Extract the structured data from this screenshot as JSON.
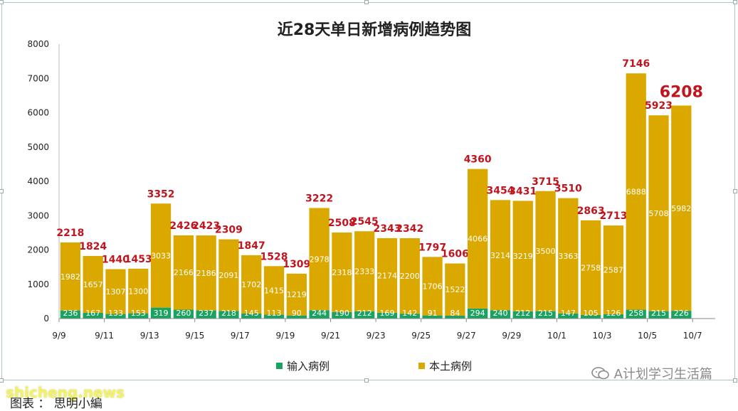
{
  "chart_data": {
    "type": "bar",
    "stacked": true,
    "title": "近28天单日新增病例趋势图",
    "ylim": [
      0,
      8000
    ],
    "yticks": [
      0,
      1000,
      2000,
      3000,
      4000,
      5000,
      6000,
      7000,
      8000
    ],
    "x_tick_labels": [
      "9/9",
      "9/11",
      "9/13",
      "9/15",
      "9/17",
      "9/19",
      "9/21",
      "9/23",
      "9/25",
      "9/27",
      "9/29",
      "10/1",
      "10/3",
      "10/5",
      "10/7"
    ],
    "categories": [
      "9/9",
      "9/10",
      "9/11",
      "9/12",
      "9/13",
      "9/14",
      "9/15",
      "9/16",
      "9/17",
      "9/18",
      "9/19",
      "9/20",
      "9/21",
      "9/22",
      "9/23",
      "9/24",
      "9/25",
      "9/26",
      "9/27",
      "9/28",
      "9/29",
      "9/30",
      "10/1",
      "10/2",
      "10/3",
      "10/4",
      "10/5",
      "10/6"
    ],
    "series": [
      {
        "name": "输入病例",
        "color": "#1aa260",
        "values": [
          236,
          167,
          133,
          153,
          319,
          260,
          237,
          218,
          145,
          113,
          90,
          244,
          190,
          212,
          169,
          142,
          91,
          84,
          294,
          240,
          212,
          215,
          147,
          105,
          126,
          258,
          215,
          226
        ]
      },
      {
        "name": "本土病例",
        "color": "#dba800",
        "values": [
          1982,
          1657,
          1307,
          1300,
          3033,
          2166,
          2186,
          2091,
          1702,
          1415,
          1219,
          2978,
          2318,
          2333,
          2174,
          2200,
          1706,
          1522,
          4066,
          3214,
          3219,
          3500,
          3363,
          2758,
          2587,
          6888,
          5708,
          5982
        ]
      }
    ],
    "totals": [
      2218,
      1824,
      1440,
      1453,
      3352,
      2426,
      2423,
      2309,
      1847,
      1528,
      1309,
      3222,
      2508,
      2545,
      2343,
      2342,
      1797,
      1606,
      4360,
      3454,
      3431,
      3715,
      3510,
      2863,
      2713,
      7146,
      5923,
      6208
    ],
    "total_label_color": "#c0141e",
    "legend_position": "bottom",
    "grid": false
  },
  "legend": {
    "imported": "输入病例",
    "local": "本土病例"
  },
  "watermark": "A计划学习生活篇",
  "site_tag": "shicheng.news",
  "caption": "图表 ： 思明小編"
}
